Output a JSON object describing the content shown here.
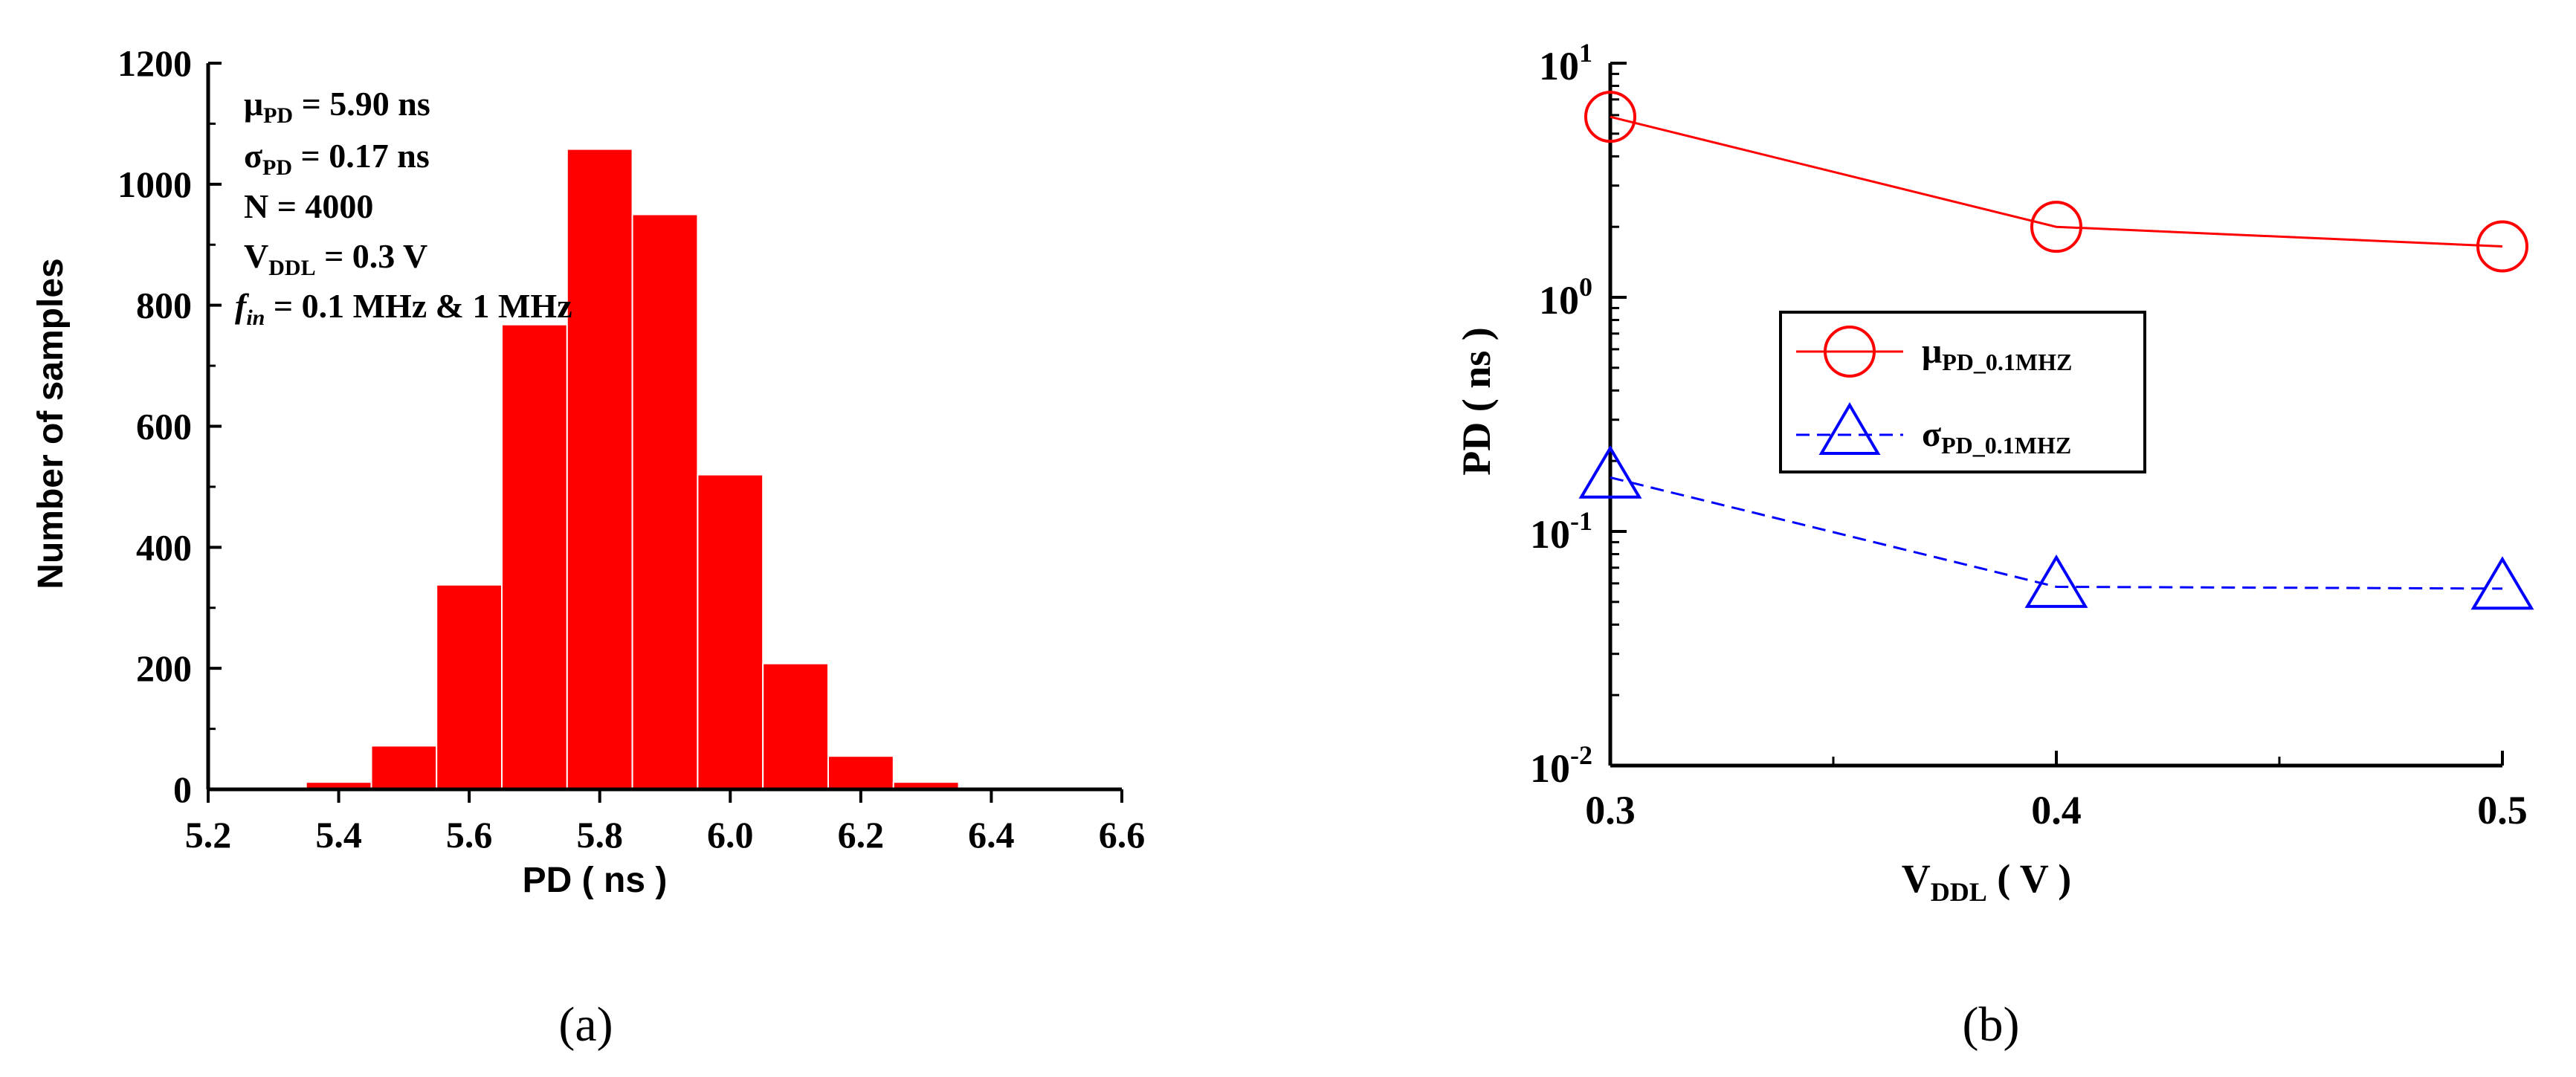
{
  "chart_data": [
    {
      "type": "bar",
      "panel_label": "(a)",
      "xlabel": "PD ( ns )",
      "ylabel": "Number of samples",
      "xlim": [
        5.2,
        6.6
      ],
      "ylim": [
        0,
        1200
      ],
      "xticks": [
        "5.2",
        "5.4",
        "5.6",
        "5.8",
        "6.0",
        "6.2",
        "6.4",
        "6.6"
      ],
      "yticks": [
        "0",
        "200",
        "400",
        "600",
        "800",
        "1000",
        "1200"
      ],
      "bin_width": 0.1,
      "bin_starts": [
        5.35,
        5.45,
        5.55,
        5.65,
        5.75,
        5.85,
        5.95,
        6.05,
        6.15,
        6.25,
        6.35
      ],
      "values": [
        12,
        72,
        338,
        768,
        1058,
        950,
        520,
        208,
        55,
        12,
        0
      ],
      "color": "#ff0000",
      "annotations": {
        "mu": {
          "sym": "μ",
          "sub": "PD",
          "rest": " = 5.90 ns"
        },
        "sigma": {
          "sym": "σ",
          "sub": "PD",
          "rest": " = 0.17 ns"
        },
        "n": "N = 4000",
        "vddl": {
          "sym": "V",
          "sub": "DDL",
          "rest": " = 0.3 V"
        },
        "fin": {
          "sym": "f",
          "sub": "in",
          "rest": " = 0.1 MHz & 1 MHz"
        }
      }
    },
    {
      "type": "line",
      "panel_label": "(b)",
      "xlabel": {
        "sym": "V",
        "sub": "DDL",
        "rest": " ( V )"
      },
      "ylabel": "PD ( ns )",
      "yscale": "log",
      "xlim": [
        0.3,
        0.5
      ],
      "ylim": [
        0.01,
        10
      ],
      "xticks": [
        "0.3",
        "0.4",
        "0.5"
      ],
      "yticks": [
        {
          "base": "10",
          "exp": "1"
        },
        {
          "base": "10",
          "exp": "0"
        },
        {
          "base": "10",
          "exp": "-1"
        },
        {
          "base": "10",
          "exp": "-2"
        }
      ],
      "x": [
        0.3,
        0.4,
        0.5
      ],
      "series": [
        {
          "name": {
            "sym": "μ",
            "sub": "PD_0.1MHZ"
          },
          "values": [
            5.9,
            2.0,
            1.65
          ],
          "color": "#ff0000",
          "marker": "circle",
          "line": "solid"
        },
        {
          "name": {
            "sym": "σ",
            "sub": "PD_0.1MHZ"
          },
          "values": [
            0.17,
            0.058,
            0.057
          ],
          "color": "#0000ff",
          "marker": "triangle",
          "line": "dashed"
        }
      ]
    }
  ]
}
